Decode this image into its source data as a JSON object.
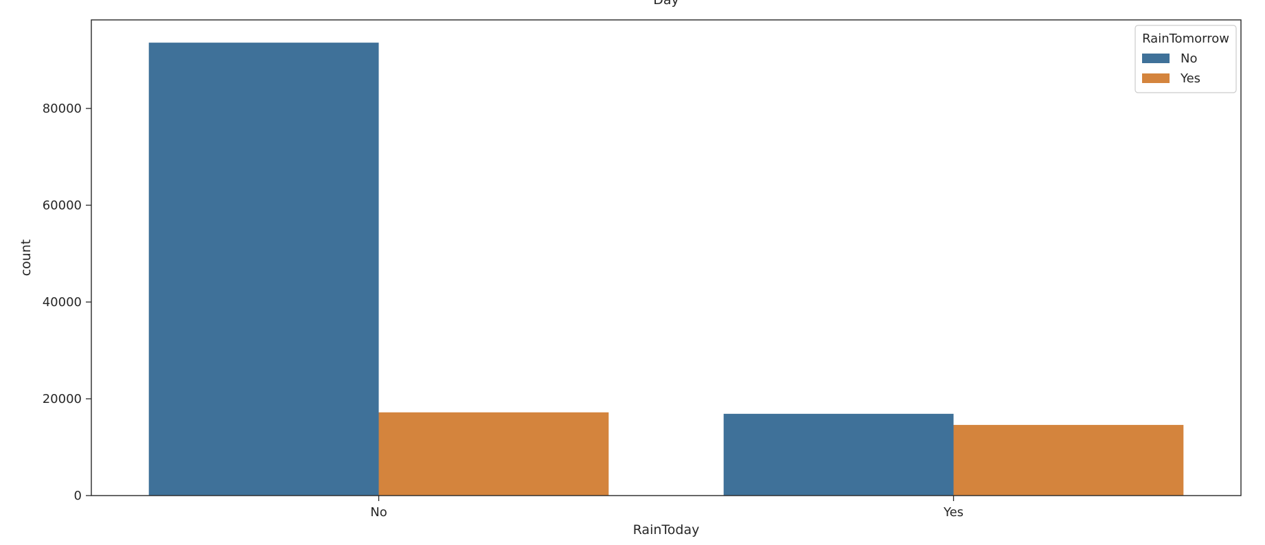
{
  "chart_data": {
    "type": "bar",
    "title": "Day",
    "xlabel": "RainToday",
    "ylabel": "count",
    "categories": [
      "No",
      "Yes"
    ],
    "series": [
      {
        "name": "No",
        "color": "#3f7199",
        "values": [
          93600,
          16900
        ]
      },
      {
        "name": "Yes",
        "color": "#d4843d",
        "values": [
          17200,
          14600
        ]
      }
    ],
    "ylim": [
      0,
      98300
    ],
    "yticks": [
      {
        "value": 0,
        "label": "0"
      },
      {
        "value": 20000,
        "label": "20000"
      },
      {
        "value": 40000,
        "label": "40000"
      },
      {
        "value": 60000,
        "label": "60000"
      },
      {
        "value": 80000,
        "label": "80000"
      }
    ],
    "legend": {
      "title": "RainTomorrow",
      "placement": "top-right"
    },
    "grid": false
  }
}
